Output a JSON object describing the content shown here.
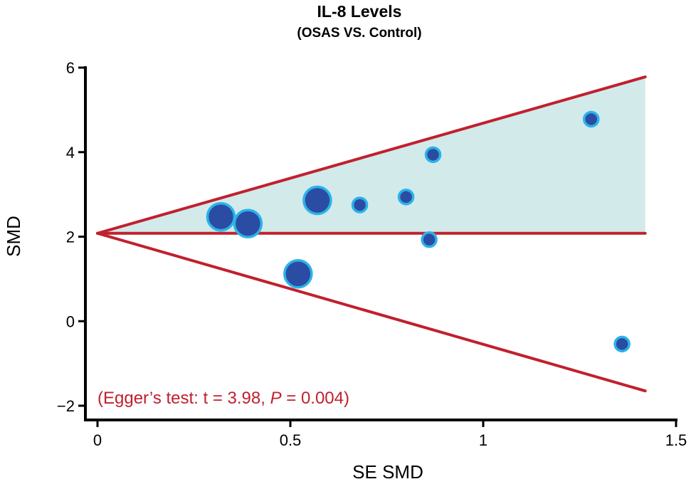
{
  "chart_data": {
    "type": "scatter",
    "title": "IL-8 Levels",
    "subtitle": "(OSAS VS. Control)",
    "xlabel": "SE SMD",
    "ylabel": "SMD",
    "xlim": [
      0,
      1.5
    ],
    "ylim": [
      -2,
      6
    ],
    "x_ticks": [
      0,
      0.5,
      1,
      1.5
    ],
    "x_tick_labels": [
      "0",
      "0.5",
      "1",
      "1.5"
    ],
    "y_ticks": [
      -2,
      0,
      2,
      4,
      6
    ],
    "y_tick_labels": [
      "−2",
      "0",
      "2",
      "4",
      "6"
    ],
    "pooled_smd": 2.08,
    "funnel_se_max": 1.42,
    "funnel_upper_at_max": 5.78,
    "funnel_lower_at_max": -1.65,
    "points": [
      {
        "se": 0.32,
        "smd": 2.47,
        "weight": "large"
      },
      {
        "se": 0.39,
        "smd": 2.31,
        "weight": "large"
      },
      {
        "se": 0.52,
        "smd": 1.12,
        "weight": "large"
      },
      {
        "se": 0.57,
        "smd": 2.86,
        "weight": "large"
      },
      {
        "se": 0.68,
        "smd": 2.75,
        "weight": "small"
      },
      {
        "se": 0.8,
        "smd": 2.94,
        "weight": "small"
      },
      {
        "se": 0.86,
        "smd": 1.93,
        "weight": "small"
      },
      {
        "se": 0.87,
        "smd": 3.94,
        "weight": "small"
      },
      {
        "se": 1.28,
        "smd": 4.78,
        "weight": "small"
      },
      {
        "se": 1.36,
        "smd": -0.54,
        "weight": "small"
      }
    ],
    "annotation": {
      "prefix": "(Egger’s test: t = 3.98, ",
      "italic": "P",
      "suffix": " = 0.004)"
    },
    "colors": {
      "funnel_line": "#c0202e",
      "funnel_fill": "#d2eaea",
      "point_fill": "#2a4da3",
      "point_stroke": "#2bb3e8",
      "annotation": "#c0202e",
      "axis": "#000000"
    },
    "grid": false,
    "legend": "none"
  }
}
